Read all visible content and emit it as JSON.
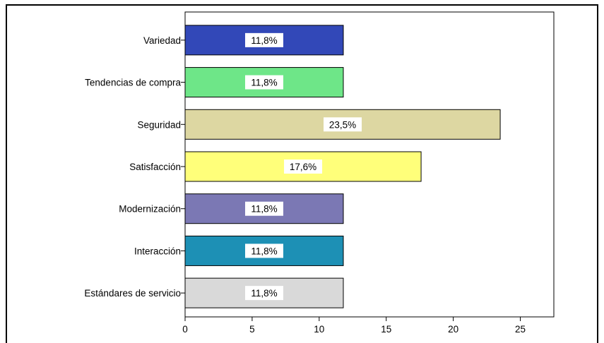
{
  "chart_data": {
    "type": "bar",
    "orientation": "horizontal",
    "title": "",
    "xlabel": "",
    "ylabel": "",
    "xlim": [
      0,
      27.5
    ],
    "xticks": [
      0,
      5,
      10,
      15,
      20,
      25
    ],
    "grid": false,
    "categories": [
      "Variedad",
      "Tendencias de compra",
      "Seguridad",
      "Satisfacción",
      "Modernización",
      "Interacción",
      "Estándares de servicio"
    ],
    "values": [
      11.8,
      11.8,
      23.5,
      17.6,
      11.8,
      11.8,
      11.8
    ],
    "data_labels": [
      "11,8%",
      "11,8%",
      "23,5%",
      "17,6%",
      "11,8%",
      "11,8%",
      "11,8%"
    ],
    "colors": [
      "#3248b8",
      "#6ee688",
      "#ddd7a2",
      "#ffff7a",
      "#7b78b4",
      "#1d90b5",
      "#d9d9d9"
    ]
  }
}
